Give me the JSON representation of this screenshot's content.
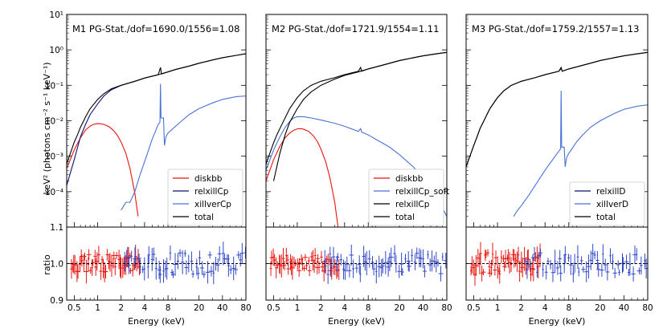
{
  "figure": {
    "ylabel_top": "keV² (photons cm⁻² s⁻¹ keV⁻¹)",
    "ylabel_bottom": "ratio",
    "xlabel": "Energy (keV)"
  },
  "colors": {
    "diskbb": "#e8150f",
    "relxillCp": "#0d1378",
    "xillverCp": "#4a72d6",
    "total": "#000000",
    "data_red": "#e8150f",
    "data_blue": "#3047c9",
    "model_red": "#e8150f",
    "model_blue": "#3047c9"
  },
  "chart_data": [
    {
      "type": "line",
      "title": "M1 PG-Stat./dof=1690.0/1556=1.08",
      "xlabel": "Energy (keV)",
      "ylabel": "keV² (photons cm⁻² s⁻¹ keV⁻¹)",
      "xscale": "log",
      "yscale": "log",
      "xlim": [
        0.4,
        80
      ],
      "ylim": [
        1e-05,
        10
      ],
      "xticks": [
        "0.5",
        "1",
        "2",
        "4",
        "8",
        "20",
        "40",
        "80"
      ],
      "yticks": [
        "10⁻⁴",
        "10⁻³",
        "10⁻²",
        "10⁻¹",
        "10⁰",
        "10¹"
      ],
      "legend_position": "lower-right",
      "series": [
        {
          "name": "diskbb",
          "color": "#e8150f",
          "x": [
            0.4,
            0.5,
            0.6,
            0.7,
            0.8,
            0.9,
            1.0,
            1.1,
            1.2,
            1.4,
            1.6,
            1.8,
            2.0,
            2.3,
            2.6,
            3.0,
            3.3
          ],
          "y": [
            0.00045,
            0.0015,
            0.0033,
            0.0055,
            0.0071,
            0.008,
            0.0083,
            0.0082,
            0.0079,
            0.0068,
            0.0053,
            0.0038,
            0.0025,
            0.0012,
            0.00045,
            9e-05,
            2e-05
          ]
        },
        {
          "name": "relxillCp",
          "color": "#0d1378",
          "x": [
            0.4,
            0.5,
            0.6,
            0.7,
            0.8,
            1.0,
            1.2,
            1.5,
            2.0,
            3.0,
            4.0,
            6.0,
            8.0,
            10,
            15,
            20,
            30,
            40,
            60,
            80
          ],
          "y": [
            0.00015,
            0.0008,
            0.0035,
            0.008,
            0.015,
            0.03,
            0.05,
            0.075,
            0.1,
            0.13,
            0.16,
            0.2,
            0.24,
            0.28,
            0.35,
            0.42,
            0.52,
            0.6,
            0.7,
            0.78
          ]
        },
        {
          "name": "xillverCp",
          "color": "#4a72d6",
          "x": [
            2.0,
            2.3,
            2.6,
            3.0,
            3.5,
            4.0,
            4.5,
            5.0,
            5.5,
            6.0,
            6.3,
            6.4,
            6.5,
            7.0,
            7.2,
            7.5,
            8.0,
            10,
            12,
            15,
            20,
            30,
            40,
            60,
            80
          ],
          "y": [
            3e-05,
            5e-05,
            5e-05,
            0.0001,
            0.0003,
            0.0007,
            0.0015,
            0.003,
            0.005,
            0.008,
            0.009,
            0.11,
            0.012,
            0.012,
            0.002,
            0.0035,
            0.0045,
            0.007,
            0.01,
            0.015,
            0.022,
            0.032,
            0.04,
            0.048,
            0.05
          ]
        },
        {
          "name": "total",
          "color": "#000000",
          "x": [
            0.4,
            0.5,
            0.55,
            0.6,
            0.7,
            0.8,
            1.0,
            1.2,
            1.5,
            2.0,
            3.0,
            4.0,
            6.0,
            6.4,
            6.6,
            8.0,
            10,
            15,
            20,
            30,
            40,
            60,
            80
          ],
          "y": [
            0.0006,
            0.0025,
            0.004,
            0.0065,
            0.013,
            0.022,
            0.04,
            0.058,
            0.08,
            0.1,
            0.13,
            0.16,
            0.2,
            0.32,
            0.21,
            0.24,
            0.28,
            0.35,
            0.42,
            0.52,
            0.6,
            0.7,
            0.78
          ]
        }
      ]
    },
    {
      "type": "line",
      "title": "M2 PG-Stat./dof=1721.9/1554=1.11",
      "xlabel": "Energy (keV)",
      "xscale": "log",
      "yscale": "log",
      "xlim": [
        0.4,
        80
      ],
      "ylim": [
        1e-05,
        10
      ],
      "xticks": [
        "0.5",
        "1",
        "2",
        "4",
        "8",
        "20",
        "40",
        "80"
      ],
      "legend_position": "lower-right",
      "series": [
        {
          "name": "diskbb",
          "color": "#e8150f",
          "x": [
            0.4,
            0.5,
            0.6,
            0.7,
            0.8,
            0.9,
            1.0,
            1.1,
            1.2,
            1.4,
            1.6,
            1.8,
            2.0,
            2.3,
            2.6,
            3.0,
            3.3
          ],
          "y": [
            0.0002,
            0.0008,
            0.0019,
            0.0033,
            0.0045,
            0.0054,
            0.0059,
            0.006,
            0.0058,
            0.005,
            0.0038,
            0.0026,
            0.0016,
            0.0007,
            0.00025,
            5e-05,
            1e-05
          ]
        },
        {
          "name": "relxillCp_soft",
          "color": "#4a72d6",
          "x": [
            0.4,
            0.5,
            0.6,
            0.7,
            0.8,
            0.9,
            1.0,
            1.2,
            1.5,
            2.0,
            3.0,
            4.0,
            6.0,
            6.4,
            6.6,
            8.0,
            10,
            15,
            20,
            30,
            40,
            60,
            80
          ],
          "y": [
            0.0004,
            0.0015,
            0.0035,
            0.0065,
            0.0095,
            0.012,
            0.013,
            0.013,
            0.012,
            0.0105,
            0.0085,
            0.007,
            0.005,
            0.006,
            0.0048,
            0.004,
            0.003,
            0.0018,
            0.0011,
            0.0005,
            0.00025,
            7e-05,
            2e-05
          ]
        },
        {
          "name": "relxillCp",
          "color": "#000000",
          "x": [
            0.5,
            0.6,
            0.7,
            0.8,
            1.0,
            1.2,
            1.5,
            2.0,
            3.0,
            4.0,
            6.0,
            8.0,
            10,
            15,
            20,
            30,
            40,
            60,
            80
          ],
          "y": [
            0.0002,
            0.0012,
            0.004,
            0.009,
            0.022,
            0.04,
            0.065,
            0.1,
            0.15,
            0.19,
            0.24,
            0.29,
            0.33,
            0.42,
            0.5,
            0.6,
            0.68,
            0.78,
            0.85
          ]
        },
        {
          "name": "total",
          "color": "#000000",
          "x": [
            0.4,
            0.5,
            0.55,
            0.6,
            0.7,
            0.8,
            1.0,
            1.2,
            1.5,
            2.0,
            3.0,
            4.0,
            6.0,
            6.4,
            6.6,
            8.0,
            10,
            15,
            20,
            30,
            40,
            60,
            80
          ],
          "y": [
            0.0006,
            0.0024,
            0.004,
            0.006,
            0.012,
            0.022,
            0.045,
            0.07,
            0.1,
            0.13,
            0.165,
            0.2,
            0.25,
            0.32,
            0.25,
            0.29,
            0.33,
            0.42,
            0.5,
            0.6,
            0.68,
            0.78,
            0.85
          ]
        }
      ]
    },
    {
      "type": "line",
      "title": "M3 PG-Stat./dof=1759.2/1557=1.13",
      "xlabel": "Energy (keV)",
      "xscale": "log",
      "yscale": "log",
      "xlim": [
        0.4,
        80
      ],
      "ylim": [
        1e-05,
        10
      ],
      "xticks": [
        "0.5",
        "1",
        "2",
        "4",
        "8",
        "20",
        "40",
        "80"
      ],
      "legend_position": "lower-right",
      "series": [
        {
          "name": "relxillD",
          "color": "#0d1378",
          "x": [
            0.4,
            0.5,
            0.55,
            0.6,
            0.7,
            0.8,
            1.0,
            1.2,
            1.5,
            2.0,
            3.0,
            4.0,
            6.0,
            6.4,
            6.6,
            8.0,
            10,
            15,
            20,
            30,
            40,
            60,
            80
          ],
          "y": [
            0.0005,
            0.002,
            0.0035,
            0.006,
            0.012,
            0.022,
            0.045,
            0.07,
            0.1,
            0.13,
            0.165,
            0.2,
            0.25,
            0.3,
            0.25,
            0.29,
            0.33,
            0.42,
            0.5,
            0.6,
            0.68,
            0.78,
            0.85
          ]
        },
        {
          "name": "xillverD",
          "color": "#4a72d6",
          "x": [
            1.6,
            1.8,
            2.0,
            2.5,
            3.0,
            4.0,
            5.0,
            6.0,
            6.3,
            6.4,
            6.5,
            7.0,
            7.2,
            7.5,
            8.0,
            10,
            12,
            15,
            20,
            30,
            40,
            60,
            80
          ],
          "y": [
            2e-05,
            3e-05,
            4e-05,
            8e-05,
            0.00015,
            0.0004,
            0.0008,
            0.0014,
            0.0016,
            0.07,
            0.0018,
            0.0018,
            0.0005,
            0.0009,
            0.0012,
            0.0025,
            0.004,
            0.0065,
            0.01,
            0.016,
            0.021,
            0.026,
            0.028
          ]
        },
        {
          "name": "total",
          "color": "#000000",
          "x": [
            0.4,
            0.5,
            0.55,
            0.6,
            0.7,
            0.8,
            1.0,
            1.2,
            1.5,
            2.0,
            3.0,
            4.0,
            6.0,
            6.4,
            6.6,
            8.0,
            10,
            15,
            20,
            30,
            40,
            60,
            80
          ],
          "y": [
            0.0005,
            0.002,
            0.0035,
            0.006,
            0.012,
            0.022,
            0.045,
            0.07,
            0.1,
            0.13,
            0.165,
            0.2,
            0.25,
            0.32,
            0.25,
            0.29,
            0.33,
            0.42,
            0.5,
            0.6,
            0.68,
            0.78,
            0.85
          ]
        }
      ]
    },
    {
      "type": "scatter",
      "xlabel": "Energy (keV)",
      "ylabel": "ratio",
      "xscale": "log",
      "xlim": [
        0.4,
        80
      ],
      "ylim": [
        0.9,
        1.1
      ],
      "xticks": [
        "0.5",
        "1",
        "2",
        "4",
        "8",
        "20",
        "40",
        "80"
      ],
      "yticks": [
        "0.9",
        "1.0",
        "1.1"
      ],
      "reference_line": 1.0,
      "red_points": {
        "x_range": [
          0.45,
          3.5
        ],
        "y_center": 1.0,
        "y_spread": 0.025,
        "count": 50
      },
      "blue_points": {
        "x_range": [
          2.2,
          80
        ],
        "y_center": 1.0,
        "y_spread": 0.03,
        "count": 55
      }
    },
    {
      "type": "scatter",
      "xlabel": "Energy (keV)",
      "xscale": "log",
      "xlim": [
        0.4,
        80
      ],
      "ylim": [
        0.9,
        1.1
      ],
      "xticks": [
        "0.5",
        "1",
        "2",
        "4",
        "8",
        "20",
        "40",
        "80"
      ],
      "reference_line": 1.0,
      "red_points": {
        "x_range": [
          0.45,
          3.5
        ],
        "y_center": 1.0,
        "y_spread": 0.022,
        "count": 50
      },
      "blue_points": {
        "x_range": [
          2.2,
          80
        ],
        "y_center": 1.0,
        "y_spread": 0.03,
        "count": 55
      }
    },
    {
      "type": "scatter",
      "xlabel": "Energy (keV)",
      "xscale": "log",
      "xlim": [
        0.4,
        80
      ],
      "ylim": [
        0.9,
        1.1
      ],
      "xticks": [
        "0.5",
        "1",
        "2",
        "4",
        "8",
        "20",
        "40",
        "80"
      ],
      "reference_line": 1.0,
      "red_points": {
        "x_range": [
          0.45,
          3.5
        ],
        "y_center": 1.0,
        "y_spread": 0.03,
        "count": 50
      },
      "blue_points": {
        "x_range": [
          2.2,
          80
        ],
        "y_center": 1.0,
        "y_spread": 0.03,
        "count": 55
      }
    }
  ]
}
